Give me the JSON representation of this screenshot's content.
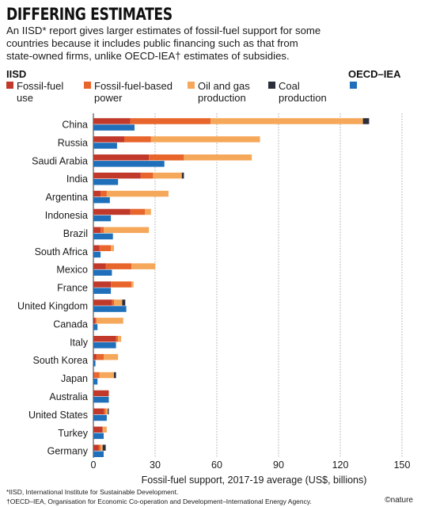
{
  "header": {
    "title": "DIFFERING ESTIMATES",
    "subtitle": "An IISD* report gives larger estimates of fossil-fuel support for some countries because it includes public financing such as that from state-owned firms, unlike OECD-IEA† estimates of subsidies."
  },
  "legend": {
    "iisd_label": "IISD",
    "oecd_label": "OECD–IEA",
    "items": [
      {
        "label": "Fossil-fuel use",
        "color": "#c0392b"
      },
      {
        "label": "Fossil-fuel-based power",
        "color": "#e8652b"
      },
      {
        "label": "Oil and gas production",
        "color": "#f5a85a"
      },
      {
        "label": "Coal production",
        "color": "#2b2d3a"
      }
    ],
    "oecd_color": "#1f6fba"
  },
  "chart_data": {
    "type": "bar",
    "orientation": "horizontal",
    "stacked": true,
    "xlabel": "Fossil-fuel support, 2017-19 average (US$, billions)",
    "xlim": [
      0,
      150
    ],
    "xticks": [
      0,
      30,
      60,
      90,
      120,
      150
    ],
    "grid": true,
    "categories": [
      "China",
      "Russia",
      "Saudi Arabia",
      "India",
      "Argentina",
      "Indonesia",
      "Brazil",
      "South Africa",
      "Mexico",
      "France",
      "United Kingdom",
      "Canada",
      "Italy",
      "South Korea",
      "Japan",
      "Australia",
      "United States",
      "Turkey",
      "Germany"
    ],
    "series": [
      {
        "name": "Fossil-fuel use",
        "group": "IISD",
        "color": "#c0392b",
        "values": [
          18,
          15,
          27,
          23,
          3.5,
          18,
          3.5,
          3,
          6,
          8.5,
          9,
          1,
          11,
          1.5,
          0.5,
          7.5,
          5,
          4.5,
          2.5
        ]
      },
      {
        "name": "Fossil-fuel-based power",
        "group": "IISD",
        "color": "#e8652b",
        "values": [
          39,
          13,
          17,
          6,
          3,
          7,
          1.5,
          5.5,
          12.5,
          10,
          1,
          0.5,
          1,
          3.5,
          2.5,
          0,
          1,
          0,
          1
        ]
      },
      {
        "name": "Oil and gas production",
        "group": "IISD",
        "color": "#f5a85a",
        "values": [
          74,
          53,
          33,
          14,
          30,
          3,
          22,
          1.5,
          11.5,
          1,
          4,
          13,
          1.5,
          7,
          7,
          0,
          1,
          2,
          1
        ]
      },
      {
        "name": "Coal production",
        "group": "IISD",
        "color": "#2b2d3a",
        "values": [
          3,
          0,
          0,
          1,
          0,
          0,
          0,
          0,
          0,
          0,
          1.5,
          0,
          0,
          0,
          1,
          0,
          0.5,
          0,
          1.5
        ]
      },
      {
        "name": "OECD–IEA",
        "group": "OECD-IEA",
        "color": "#1f6fba",
        "values": [
          20,
          11.5,
          34.5,
          12,
          8,
          8.5,
          9.5,
          3.5,
          9,
          8.5,
          16,
          2,
          11,
          1,
          2,
          7.5,
          6.5,
          5,
          5
        ]
      }
    ]
  },
  "footnotes": [
    "*IISD, International Institute for Sustainable Development.",
    "†OECD–IEA, Organisation for Economic Co-operation and Development–International Energy Agency."
  ],
  "credit": "©nature"
}
